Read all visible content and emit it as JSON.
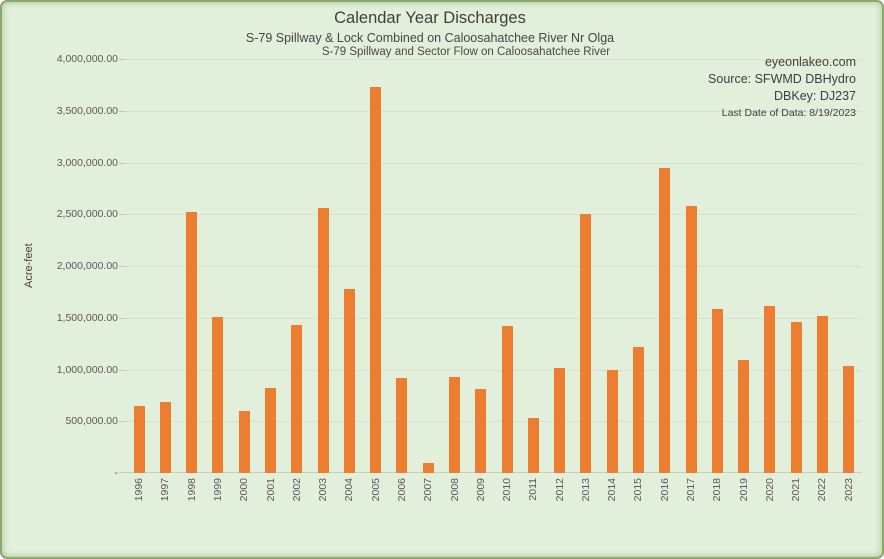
{
  "header": {
    "title": "Calendar Year Discharges",
    "subtitle1": "S-79 Spillway & Lock Combined on Caloosahatchee River Nr Olga",
    "subtitle2": "S-79 Spillway and Sector Flow on Caloosahatchee River"
  },
  "credits": {
    "site": "eyeonlakeo.com",
    "source": "Source: SFWMD DBHydro",
    "dbkey": "DBKey: DJ237",
    "last_date": "Last Date of Data: 8/19/2023"
  },
  "chart_data": {
    "type": "bar",
    "title": "Calendar Year Discharges",
    "xlabel": "",
    "ylabel": "Acre-feet",
    "categories": [
      "1996",
      "1997",
      "1998",
      "1999",
      "2000",
      "2001",
      "2002",
      "2003",
      "2004",
      "2005",
      "2006",
      "2007",
      "2008",
      "2009",
      "2010",
      "2011",
      "2012",
      "2013",
      "2014",
      "2015",
      "2016",
      "2017",
      "2018",
      "2019",
      "2020",
      "2021",
      "2022",
      "2023"
    ],
    "values": [
      650000,
      690000,
      2520000,
      1510000,
      600000,
      820000,
      1430000,
      2560000,
      1780000,
      3730000,
      920000,
      100000,
      930000,
      810000,
      1420000,
      530000,
      1010000,
      2500000,
      1000000,
      1220000,
      2950000,
      2580000,
      1580000,
      1090000,
      1610000,
      1460000,
      1520000,
      1030000
    ],
    "ylim": [
      0,
      4000000
    ],
    "ytick_interval": 500000,
    "ytick_labels_top_to_bottom": [
      "4,000,000.00",
      "3,500,000.00",
      "3,000,000.00",
      "2,500,000.00",
      "2,000,000.00",
      "1,500,000.00",
      "1,000,000.00",
      "500,000.00",
      "-"
    ],
    "grid": true,
    "legend": false,
    "bar_color": "#ED7D31",
    "background_color": "#E2EFDA",
    "frame_border_color": "#8BA96A"
  }
}
